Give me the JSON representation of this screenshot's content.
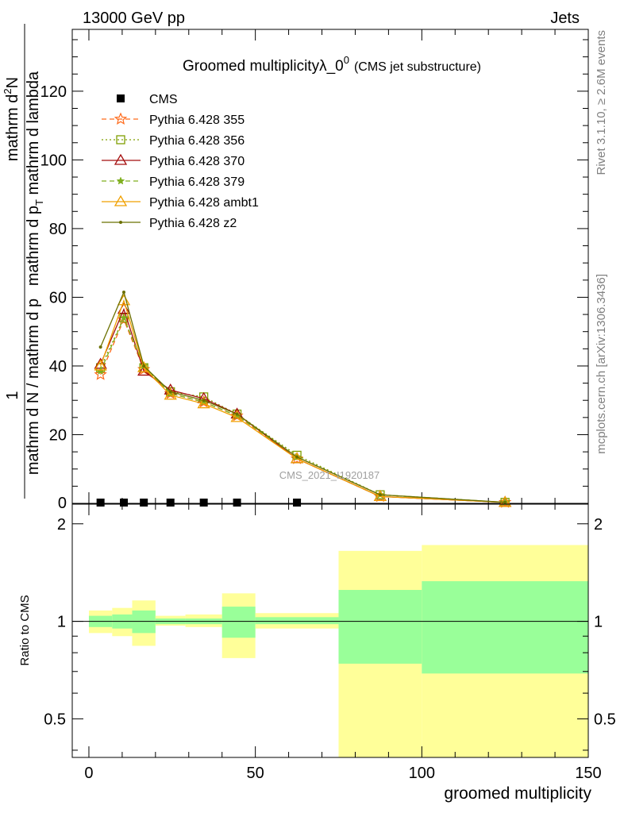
{
  "header": {
    "left": "13000 GeV pp",
    "right": "Jets"
  },
  "side_labels": {
    "rivet": "Rivet 3.1.10, ≥ 2.6M events",
    "mcplots": "mcplots.cern.ch [arXiv:1306.3436]"
  },
  "chart_data": [
    {
      "type": "line",
      "panel": "main",
      "title": "Groomed multiplicityλ_0",
      "title_sup": "0",
      "title_suffix": "(CMS jet substructure)",
      "ylabel_numerator_prefix": "1",
      "ylabel_denominator": "mathrm d N / mathrm d p",
      "ylabel_tick_lines": [
        "mathrm d",
        "N",
        "mathrm d p",
        "T",
        " mathrm d lambda"
      ],
      "ylabel_full": "1 / (mathrm d N / mathrm d p_T) · mathrm d²N / (mathrm d p_T mathrm d lambda)",
      "xlim": [
        -5,
        150
      ],
      "ylim": [
        0,
        138
      ],
      "yticks": [
        20,
        40,
        60,
        80,
        100,
        120
      ],
      "watermark": "CMS_2021_I1920187",
      "legend_position": "top-left",
      "x": [
        3.5,
        10.5,
        16.5,
        24.5,
        34.5,
        44.5,
        62.5,
        87.5,
        125
      ],
      "series": [
        {
          "name": "CMS",
          "color": "#000000",
          "marker": "square",
          "dash": "none",
          "values": [
            0,
            0,
            0,
            0,
            0,
            0,
            0,
            null,
            null
          ]
        },
        {
          "name": "Pythia 6.428 355",
          "color": "#ff6a1a",
          "marker": "star",
          "dash": "6,4",
          "values": [
            37.5,
            53.5,
            39,
            32,
            29.5,
            25.5,
            13,
            2,
            0.3
          ]
        },
        {
          "name": "Pythia 6.428 356",
          "color": "#7f9f00",
          "marker": "open-square",
          "dash": "2,3",
          "values": [
            39.5,
            54,
            39.5,
            32.5,
            31,
            26,
            14,
            2.5,
            0.3
          ]
        },
        {
          "name": "Pythia 6.428 370",
          "color": "#a50e0e",
          "marker": "open-triangle",
          "dash": "none",
          "values": [
            40.5,
            56.5,
            38.5,
            33,
            30.5,
            26,
            13,
            2,
            0.3
          ]
        },
        {
          "name": "Pythia 6.428 379",
          "color": "#7faf1f",
          "marker": "small-star",
          "dash": "6,4",
          "values": [
            38.5,
            54,
            40,
            32,
            29.5,
            25.5,
            13.5,
            2.5,
            0.3
          ]
        },
        {
          "name": "Pythia 6.428 ambt1",
          "color": "#f0a000",
          "marker": "open-triangle",
          "dash": "none",
          "values": [
            40,
            59,
            39.5,
            31.5,
            29,
            25,
            13,
            2,
            0.3
          ]
        },
        {
          "name": "Pythia 6.428 z2",
          "color": "#6b7000",
          "marker": "dot",
          "dash": "none",
          "values": [
            45.5,
            61.5,
            40,
            32.5,
            30,
            26,
            13.5,
            2.5,
            0.3
          ]
        }
      ]
    },
    {
      "type": "area",
      "panel": "ratio",
      "ylabel": "Ratio to CMS",
      "xlabel": "groomed multiplicity",
      "xlim": [
        -5,
        150
      ],
      "ylim": [
        0.38,
        2.3
      ],
      "yticks": [
        0.5,
        1,
        2
      ],
      "xticks": [
        0,
        50,
        100,
        150
      ],
      "ref_line": 1,
      "bins": [
        {
          "lo": 0,
          "hi": 7,
          "inner": [
            0.96,
            1.04
          ],
          "outer": [
            0.92,
            1.08
          ]
        },
        {
          "lo": 7,
          "hi": 13,
          "inner": [
            0.95,
            1.05
          ],
          "outer": [
            0.9,
            1.1
          ]
        },
        {
          "lo": 13,
          "hi": 20,
          "inner": [
            0.92,
            1.08
          ],
          "outer": [
            0.84,
            1.16
          ]
        },
        {
          "lo": 20,
          "hi": 29,
          "inner": [
            0.98,
            1.02
          ],
          "outer": [
            0.97,
            1.04
          ]
        },
        {
          "lo": 29,
          "hi": 40,
          "inner": [
            0.98,
            1.02
          ],
          "outer": [
            0.96,
            1.05
          ]
        },
        {
          "lo": 40,
          "hi": 50,
          "inner": [
            0.89,
            1.11
          ],
          "outer": [
            0.77,
            1.22
          ]
        },
        {
          "lo": 50,
          "hi": 75,
          "inner": [
            0.98,
            1.03
          ],
          "outer": [
            0.95,
            1.06
          ]
        },
        {
          "lo": 75,
          "hi": 100,
          "inner": [
            0.74,
            1.25
          ],
          "outer": [
            0.3,
            1.65
          ]
        },
        {
          "lo": 100,
          "hi": 150,
          "inner": [
            0.69,
            1.33
          ],
          "outer": [
            0.3,
            1.72
          ]
        }
      ],
      "inner_color": "#99ff99",
      "outer_color": "#ffff99"
    }
  ]
}
